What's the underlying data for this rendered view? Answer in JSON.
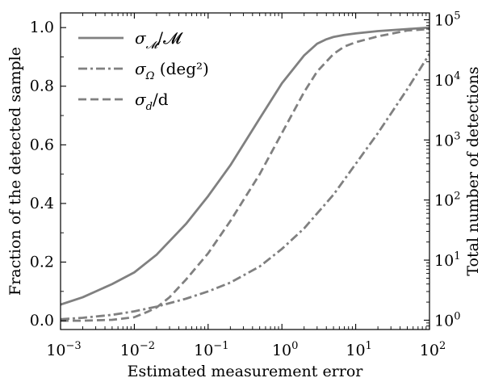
{
  "chart_data": {
    "type": "line",
    "xlabel": "Estimated measurement error",
    "ylabel": "Fraction of the detected sample",
    "y2label": "Total number of detections",
    "xscale": "log",
    "xlim": [
      0.001,
      100
    ],
    "ylim": [
      -0.03,
      1.05
    ],
    "y2scale": "log",
    "y2lim": [
      0.7,
      130000
    ],
    "grid": false,
    "legend_position": "top-left",
    "x_ticks": [
      {
        "value": 0.001,
        "base": "10",
        "exp": "−3"
      },
      {
        "value": 0.01,
        "base": "10",
        "exp": "−2"
      },
      {
        "value": 0.1,
        "base": "10",
        "exp": "−1"
      },
      {
        "value": 1,
        "base": "10",
        "exp": "0"
      },
      {
        "value": 10,
        "base": "10",
        "exp": "1"
      },
      {
        "value": 100,
        "base": "10",
        "exp": "2"
      }
    ],
    "y_ticks": [
      {
        "value": 0.0,
        "label": "0.0"
      },
      {
        "value": 0.2,
        "label": "0.2"
      },
      {
        "value": 0.4,
        "label": "0.4"
      },
      {
        "value": 0.6,
        "label": "0.6"
      },
      {
        "value": 0.8,
        "label": "0.8"
      },
      {
        "value": 1.0,
        "label": "1.0"
      }
    ],
    "y2_ticks": [
      {
        "value": 1,
        "base": "10",
        "exp": "0"
      },
      {
        "value": 10,
        "base": "10",
        "exp": "1"
      },
      {
        "value": 100,
        "base": "10",
        "exp": "2"
      },
      {
        "value": 1000,
        "base": "10",
        "exp": "3"
      },
      {
        "value": 10000,
        "base": "10",
        "exp": "4"
      },
      {
        "value": 100000,
        "base": "10",
        "exp": "5"
      }
    ],
    "series_color": "#808080",
    "series": [
      {
        "name": "σ_M/M",
        "legend": {
          "sym": "σ",
          "sub": "𝓜",
          "rest": "/𝓜"
        },
        "style": "solid",
        "x": [
          0.001,
          0.002,
          0.005,
          0.01,
          0.02,
          0.05,
          0.1,
          0.2,
          0.5,
          1,
          2,
          3,
          4,
          5,
          7,
          10,
          20,
          50,
          100
        ],
        "y": [
          0.055,
          0.08,
          0.125,
          0.165,
          0.225,
          0.33,
          0.425,
          0.53,
          0.69,
          0.81,
          0.905,
          0.945,
          0.96,
          0.968,
          0.975,
          0.98,
          0.988,
          0.995,
          1.0
        ]
      },
      {
        "name": "σ_Ω (deg²)",
        "legend": {
          "sym": "σ",
          "sub": "Ω",
          "rest": " (deg²)"
        },
        "style": "dashdot",
        "x": [
          0.001,
          0.002,
          0.005,
          0.01,
          0.02,
          0.05,
          0.1,
          0.2,
          0.5,
          1,
          2,
          5,
          10,
          20,
          50,
          100
        ],
        "y": [
          0.005,
          0.01,
          0.02,
          0.032,
          0.048,
          0.075,
          0.1,
          0.13,
          0.185,
          0.245,
          0.315,
          0.43,
          0.535,
          0.64,
          0.79,
          0.91
        ]
      },
      {
        "name": "σ_d/d",
        "legend": {
          "sym": "σ",
          "sub": "d",
          "rest": "/d"
        },
        "style": "dashed",
        "x": [
          0.001,
          0.002,
          0.005,
          0.01,
          0.015,
          0.02,
          0.03,
          0.05,
          0.1,
          0.2,
          0.5,
          1,
          2,
          3,
          5,
          7,
          10,
          20,
          50,
          100
        ],
        "y": [
          0.0,
          0.0,
          0.003,
          0.012,
          0.03,
          0.045,
          0.08,
          0.14,
          0.23,
          0.34,
          0.5,
          0.64,
          0.78,
          0.85,
          0.91,
          0.935,
          0.95,
          0.97,
          0.99,
          0.995
        ]
      }
    ]
  }
}
